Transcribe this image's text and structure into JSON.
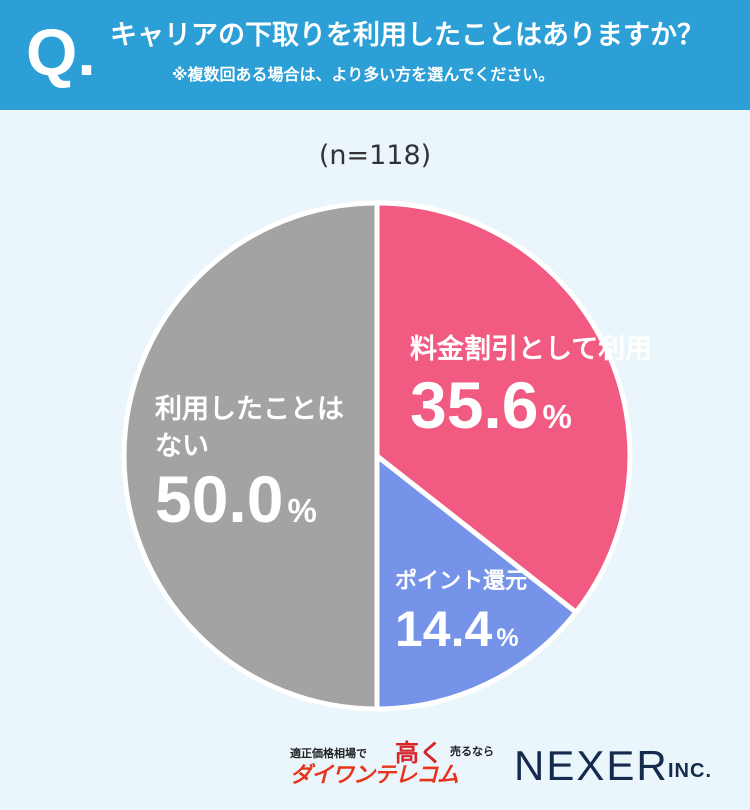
{
  "header": {
    "q_mark": "Q.",
    "title": "キャリアの下取りを利用したことはありますか？",
    "note": "※複数回ある場合は、より多い方を選んでください。"
  },
  "sample_size": "(n=118)",
  "chart_data": {
    "type": "pie",
    "title": "キャリアの下取りを利用したことはありますか？",
    "slices": [
      {
        "label_lines": [
          "料金割引として利用"
        ],
        "value": 35.6,
        "value_text": "35.6",
        "unit": "%",
        "color": "#f15b82"
      },
      {
        "label_lines": [
          "ポイント還元"
        ],
        "value": 14.4,
        "value_text": "14.4",
        "unit": "%",
        "color": "#7593e8"
      },
      {
        "label_lines": [
          "利用したことは",
          "ない"
        ],
        "value": 50.0,
        "value_text": "50.0",
        "unit": "%",
        "color": "#a3a3a3"
      }
    ],
    "start": "12 o'clock",
    "direction": "clockwise",
    "legend": "none"
  },
  "logos": {
    "daiwan_small": "適正価格相場で",
    "daiwan_big": "高く",
    "daiwan_sell": "売るなら",
    "daiwan_name": "ダイワンテレコム",
    "nexer": "NEXER",
    "nexer_inc": "INC."
  }
}
